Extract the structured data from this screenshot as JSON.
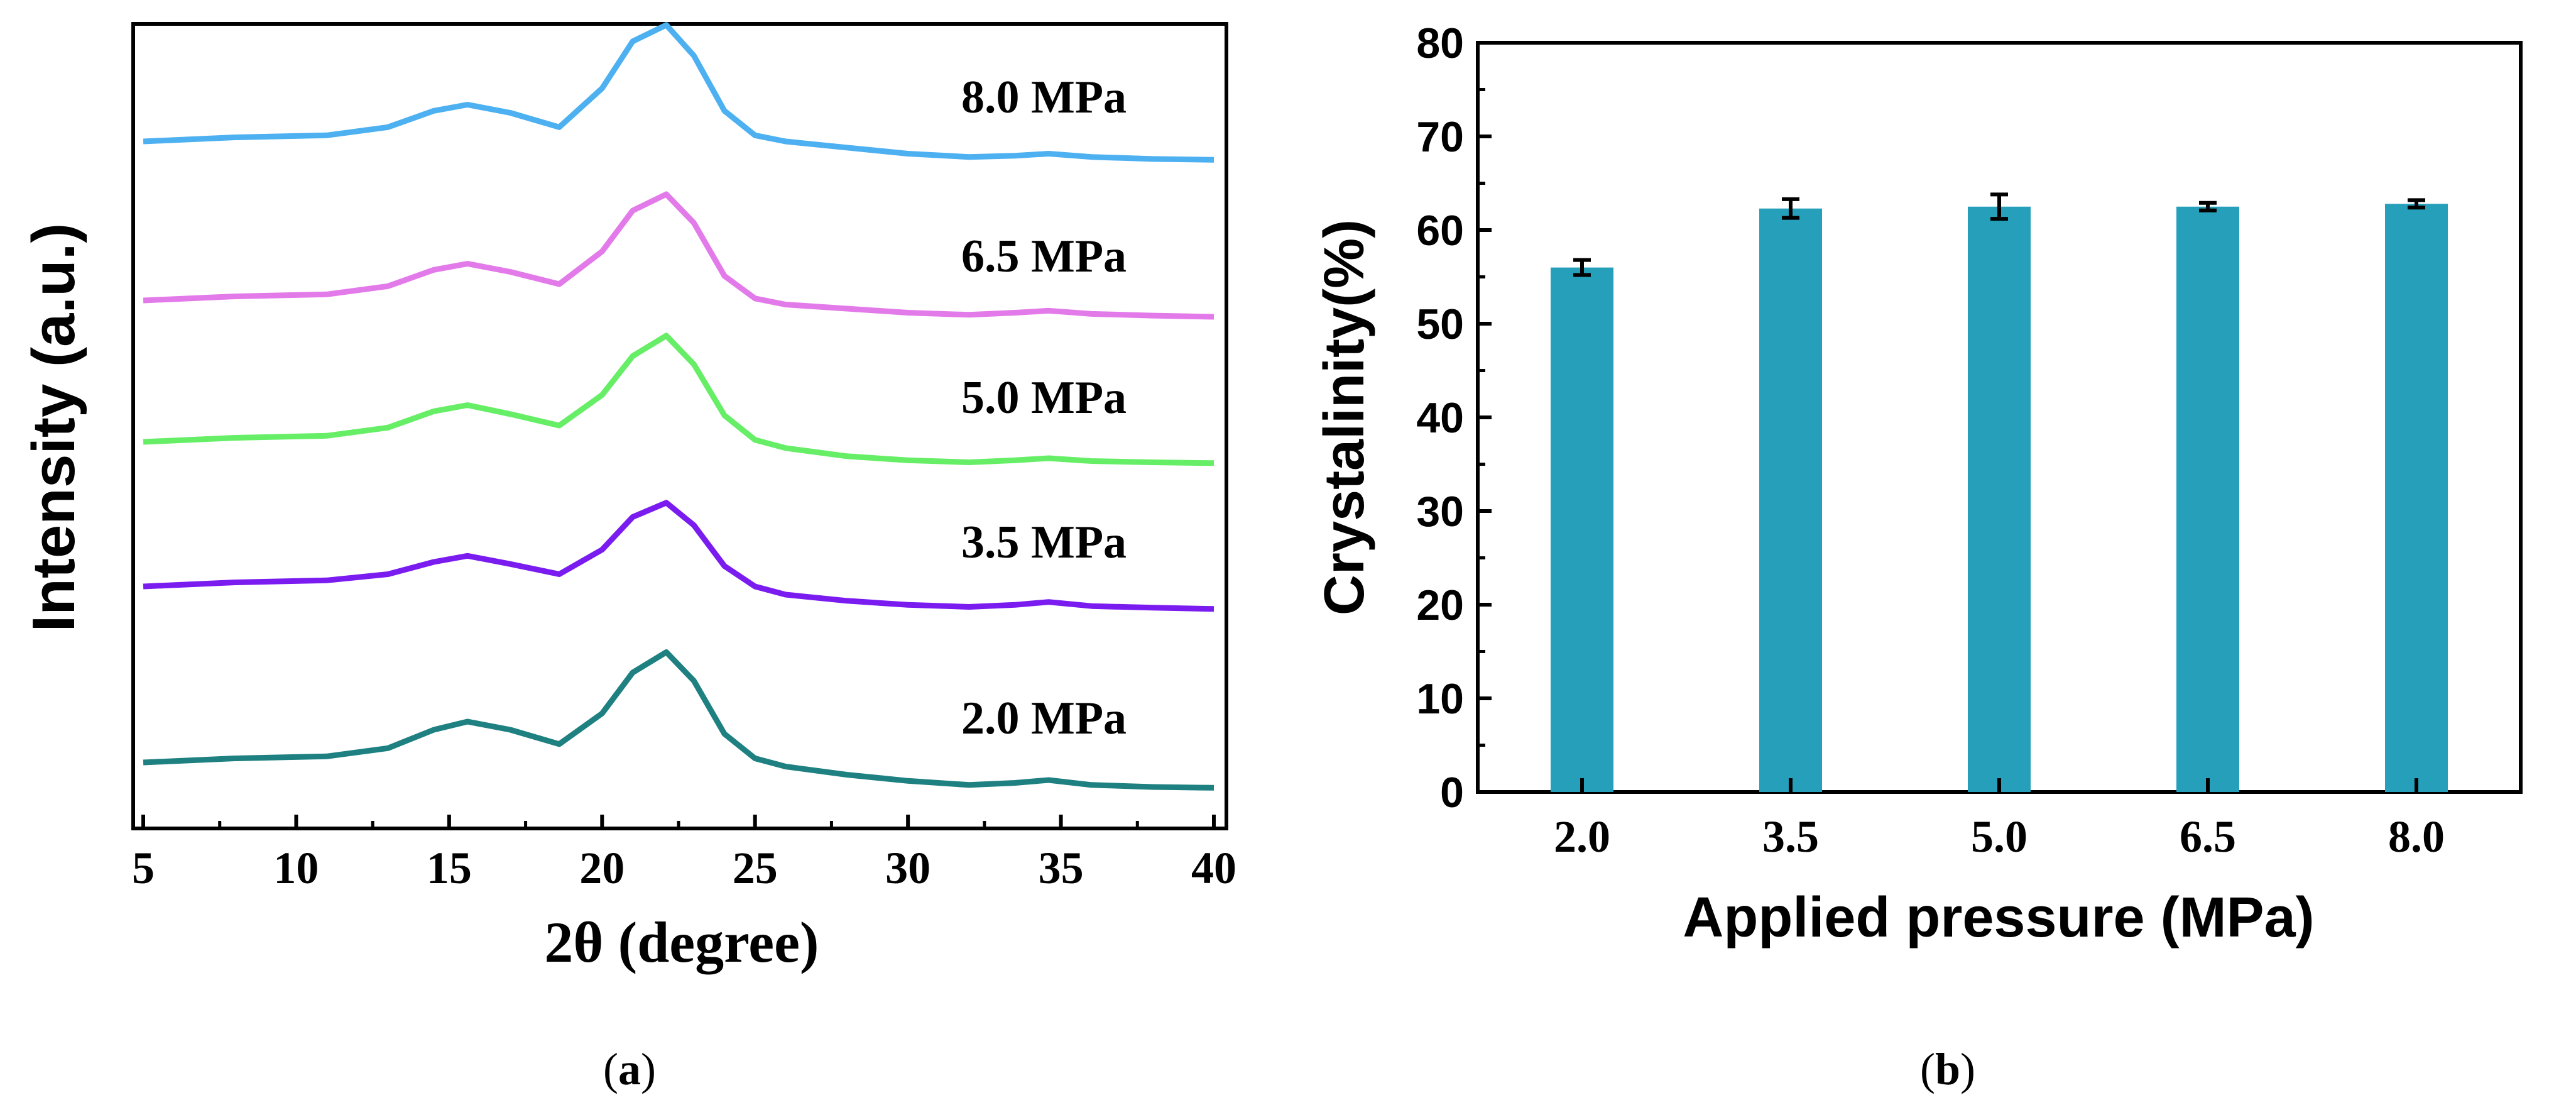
{
  "chart_data": [
    {
      "type": "line",
      "panel_label": "a",
      "xlabel": "2θ (degree)",
      "ylabel": "Intensity (a.u.)",
      "xlim": [
        5,
        40
      ],
      "xticks": [
        "5",
        "10",
        "15",
        "20",
        "25",
        "30",
        "35",
        "40"
      ],
      "yticks": [],
      "series": [
        {
          "name": "2.0 MPa",
          "label": "2.0 MPa",
          "color": "#1e8080",
          "x": [
            5,
            8,
            11,
            13,
            14.5,
            15.6,
            17,
            18.6,
            20,
            21,
            22.1,
            23,
            24,
            25,
            26,
            28,
            30,
            32,
            33.5,
            34.6,
            36,
            38,
            40
          ],
          "y": [
            0.0,
            0.01,
            0.015,
            0.035,
            0.08,
            0.1,
            0.08,
            0.045,
            0.12,
            0.22,
            0.27,
            0.2,
            0.07,
            0.01,
            -0.01,
            -0.03,
            -0.045,
            -0.055,
            -0.05,
            -0.043,
            -0.055,
            -0.06,
            -0.062
          ]
        },
        {
          "name": "3.5 MPa",
          "label": "3.5 MPa",
          "color": "#7a1cf0",
          "x": [
            5,
            8,
            11,
            13,
            14.5,
            15.6,
            17,
            18.6,
            20,
            21,
            22.1,
            23,
            24,
            25,
            26,
            28,
            30,
            32,
            33.5,
            34.6,
            36,
            38,
            40
          ],
          "y": [
            0.0,
            0.01,
            0.015,
            0.03,
            0.06,
            0.075,
            0.055,
            0.03,
            0.09,
            0.17,
            0.205,
            0.15,
            0.05,
            0.0,
            -0.02,
            -0.035,
            -0.045,
            -0.05,
            -0.045,
            -0.038,
            -0.048,
            -0.052,
            -0.055
          ]
        },
        {
          "name": "5.0 MPa",
          "label": "5.0 MPa",
          "color": "#66ee66",
          "x": [
            5,
            8,
            11,
            13,
            14.5,
            15.6,
            17,
            18.6,
            20,
            21,
            22.1,
            23,
            24,
            25,
            26,
            28,
            30,
            32,
            33.5,
            34.6,
            36,
            38,
            40
          ],
          "y": [
            0.0,
            0.01,
            0.015,
            0.035,
            0.075,
            0.09,
            0.068,
            0.04,
            0.115,
            0.21,
            0.26,
            0.19,
            0.065,
            0.005,
            -0.015,
            -0.035,
            -0.045,
            -0.05,
            -0.045,
            -0.04,
            -0.047,
            -0.05,
            -0.052
          ]
        },
        {
          "name": "6.5 MPa",
          "label": "6.5 MPa",
          "color": "#e37ae9",
          "x": [
            5,
            8,
            11,
            13,
            14.5,
            15.6,
            17,
            18.6,
            20,
            21,
            22.1,
            23,
            24,
            25,
            26,
            28,
            30,
            32,
            33.5,
            34.6,
            36,
            38,
            40
          ],
          "y": [
            0.0,
            0.01,
            0.015,
            0.035,
            0.075,
            0.09,
            0.07,
            0.04,
            0.12,
            0.22,
            0.26,
            0.19,
            0.06,
            0.005,
            -0.01,
            -0.02,
            -0.03,
            -0.035,
            -0.03,
            -0.025,
            -0.033,
            -0.037,
            -0.04
          ]
        },
        {
          "name": "8.0 MPa",
          "label": "8.0 MPa",
          "color": "#4db0f0",
          "x": [
            5,
            8,
            11,
            13,
            14.5,
            15.6,
            17,
            18.6,
            20,
            21,
            22.1,
            23,
            24,
            25,
            26,
            28,
            30,
            32,
            33.5,
            34.6,
            36,
            38,
            40
          ],
          "y": [
            0.0,
            0.01,
            0.015,
            0.035,
            0.075,
            0.09,
            0.07,
            0.035,
            0.13,
            0.245,
            0.285,
            0.21,
            0.075,
            0.015,
            0.0,
            -0.015,
            -0.03,
            -0.038,
            -0.035,
            -0.03,
            -0.038,
            -0.043,
            -0.045
          ]
        }
      ]
    },
    {
      "type": "bar",
      "panel_label": "b",
      "xlabel": "Applied pressure (MPa)",
      "ylabel": "Crystalinity(%)",
      "ylim": [
        0,
        80
      ],
      "yticks": [
        "0",
        "10",
        "20",
        "30",
        "40",
        "50",
        "60",
        "70",
        "80"
      ],
      "categories": [
        "2.0",
        "3.5",
        "5.0",
        "6.5",
        "8.0"
      ],
      "values": [
        56.0,
        62.3,
        62.5,
        62.5,
        62.8
      ],
      "errors": [
        0.8,
        1.0,
        1.3,
        0.4,
        0.4
      ],
      "bar_color": "#259fba"
    }
  ]
}
